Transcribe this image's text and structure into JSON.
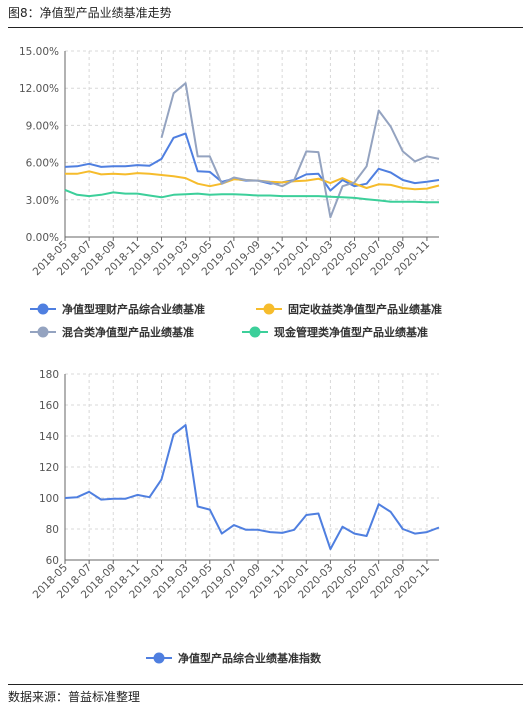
{
  "header": {
    "title": "图8：净值型产品业绩基准走势"
  },
  "footer": {
    "source": "数据来源：普益标准整理"
  },
  "colors": {
    "blue": "#4f7fe0",
    "orange": "#f6bc2c",
    "gray": "#94a3c0",
    "green": "#3ccf9a",
    "grid": "#d8d8d8",
    "axis": "#666666"
  },
  "chart_data": [
    {
      "type": "line",
      "x": [
        "2018-05",
        "2018-06",
        "2018-07",
        "2018-08",
        "2018-09",
        "2018-10",
        "2018-11",
        "2018-12",
        "2019-01",
        "2019-02",
        "2019-03",
        "2019-04",
        "2019-05",
        "2019-06",
        "2019-07",
        "2019-08",
        "2019-09",
        "2019-10",
        "2019-11",
        "2019-12",
        "2020-01",
        "2020-02",
        "2020-03",
        "2020-04",
        "2020-05",
        "2020-06",
        "2020-07",
        "2020-08",
        "2020-09",
        "2020-10",
        "2020-11",
        "2020-12"
      ],
      "tick_labels": [
        "2018-05",
        "2018-07",
        "2018-09",
        "2018-11",
        "2019-01",
        "2019-03",
        "2019-05",
        "2019-07",
        "2019-09",
        "2019-11",
        "2020-01",
        "2020-03",
        "2020-05",
        "2020-07",
        "2020-09",
        "2020-11"
      ],
      "ylim": [
        0,
        15
      ],
      "yticks": [
        "0.00%",
        "3.00%",
        "6.00%",
        "9.00%",
        "12.00%",
        "15.00%"
      ],
      "grid": true,
      "legend_position": "bottom",
      "series": [
        {
          "name": "净值型理财产品综合业绩基准",
          "color": "#4f7fe0",
          "values": [
            5.65,
            5.7,
            5.9,
            5.65,
            5.7,
            5.7,
            5.8,
            5.75,
            6.3,
            8.0,
            8.35,
            5.3,
            5.25,
            4.45,
            4.7,
            4.55,
            4.55,
            4.3,
            4.4,
            4.6,
            5.05,
            5.1,
            3.75,
            4.6,
            4.1,
            4.3,
            5.5,
            5.2,
            4.6,
            4.35,
            4.45,
            4.6
          ]
        },
        {
          "name": "固定收益类净值型产品业绩基准",
          "color": "#f6bc2c",
          "values": [
            5.1,
            5.1,
            5.3,
            5.05,
            5.1,
            5.05,
            5.15,
            5.1,
            5.0,
            4.9,
            4.75,
            4.3,
            4.1,
            4.3,
            4.65,
            4.6,
            4.55,
            4.45,
            4.4,
            4.5,
            4.55,
            4.7,
            4.35,
            4.75,
            4.3,
            3.95,
            4.25,
            4.2,
            3.95,
            3.85,
            3.9,
            4.15
          ]
        },
        {
          "name": "混合类净值型产品业绩基准",
          "color": "#94a3c0",
          "values": [
            null,
            null,
            null,
            null,
            null,
            null,
            null,
            null,
            8.0,
            11.6,
            12.4,
            6.5,
            6.5,
            4.3,
            4.8,
            4.6,
            4.55,
            4.4,
            4.1,
            4.6,
            6.9,
            6.85,
            1.6,
            4.1,
            4.4,
            5.7,
            10.2,
            8.9,
            6.9,
            6.1,
            6.5,
            6.3
          ]
        },
        {
          "name": "现金管理类净值型产品业绩基准",
          "color": "#3ccf9a",
          "values": [
            3.8,
            3.4,
            3.3,
            3.4,
            3.6,
            3.5,
            3.5,
            3.35,
            3.2,
            3.4,
            3.45,
            3.5,
            3.4,
            3.45,
            3.45,
            3.4,
            3.35,
            3.35,
            3.3,
            3.3,
            3.3,
            3.3,
            3.25,
            3.2,
            3.15,
            3.05,
            2.95,
            2.85,
            2.85,
            2.85,
            2.8,
            2.8
          ]
        }
      ]
    },
    {
      "type": "line",
      "x": [
        "2018-05",
        "2018-06",
        "2018-07",
        "2018-08",
        "2018-09",
        "2018-10",
        "2018-11",
        "2018-12",
        "2019-01",
        "2019-02",
        "2019-03",
        "2019-04",
        "2019-05",
        "2019-06",
        "2019-07",
        "2019-08",
        "2019-09",
        "2019-10",
        "2019-11",
        "2019-12",
        "2020-01",
        "2020-02",
        "2020-03",
        "2020-04",
        "2020-05",
        "2020-06",
        "2020-07",
        "2020-08",
        "2020-09",
        "2020-10",
        "2020-11",
        "2020-12"
      ],
      "tick_labels": [
        "2018-05",
        "2018-07",
        "2018-09",
        "2018-11",
        "2019-01",
        "2019-03",
        "2019-05",
        "2019-07",
        "2019-09",
        "2019-11",
        "2020-01",
        "2020-03",
        "2020-05",
        "2020-07",
        "2020-09",
        "2020-11"
      ],
      "ylim": [
        60,
        180
      ],
      "yticks": [
        "60",
        "80",
        "100",
        "120",
        "140",
        "160",
        "180"
      ],
      "grid": true,
      "legend_position": "bottom",
      "series": [
        {
          "name": "净值型产品综合业绩基准指数",
          "color": "#4f7fe0",
          "values": [
            100,
            100.5,
            104,
            99,
            99.5,
            99.5,
            102,
            100.5,
            112,
            141,
            147,
            94.5,
            92.5,
            77,
            82.5,
            79.5,
            79.5,
            78,
            77.5,
            79.5,
            89,
            90,
            67,
            81.5,
            77,
            75.5,
            96,
            91,
            80,
            77,
            78,
            81
          ]
        }
      ]
    }
  ]
}
